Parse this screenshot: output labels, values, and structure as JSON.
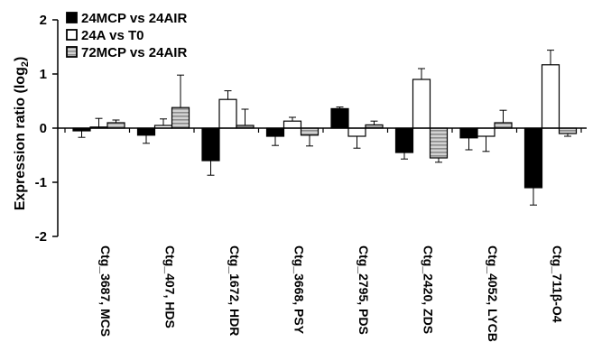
{
  "chart_data": {
    "type": "bar",
    "title": "",
    "xlabel": "",
    "ylabel": "Expression ratio (log",
    "ylabel_subscript": "2",
    "ylabel_close": ")",
    "ylim": [
      -2,
      2
    ],
    "yticks": [
      -2,
      -1,
      0,
      1,
      2
    ],
    "ytick_labels": [
      "-2",
      "-1",
      "0",
      "1",
      "2"
    ],
    "grid": false,
    "legend_position": "top-left",
    "categories": [
      "Ctg_3687, MCS",
      "Ctg_407, HDS",
      "Ctg_1672, HDR",
      "Ctg_3668, PSY",
      "Ctg_2795, PDS",
      "Ctg_2420, ZDS",
      "Ctg_4052, LYCB",
      "Ctg_711β-O4"
    ],
    "series": [
      {
        "name": "24MCP vs 24AIR",
        "style": "solid",
        "color": "#000000",
        "values": [
          -0.05,
          -0.13,
          -0.6,
          -0.15,
          0.36,
          -0.45,
          -0.18,
          -1.1
        ],
        "errors": [
          0.12,
          0.15,
          0.27,
          0.17,
          0.03,
          0.12,
          0.22,
          0.32
        ]
      },
      {
        "name": "24A vs T0",
        "style": "open",
        "color": "#ffffff",
        "values": [
          0.02,
          0.05,
          0.53,
          0.13,
          -0.15,
          0.9,
          -0.15,
          1.17
        ],
        "errors": [
          0.16,
          0.12,
          0.16,
          0.07,
          0.22,
          0.2,
          0.28,
          0.27
        ]
      },
      {
        "name": "72MCP vs 24AIR",
        "style": "striped",
        "color": "#b8b8b8",
        "values": [
          0.1,
          0.38,
          0.05,
          -0.13,
          0.06,
          -0.55,
          0.1,
          -0.1
        ],
        "errors": [
          0.05,
          0.6,
          0.3,
          0.2,
          0.07,
          0.08,
          0.23,
          0.05
        ]
      }
    ]
  }
}
